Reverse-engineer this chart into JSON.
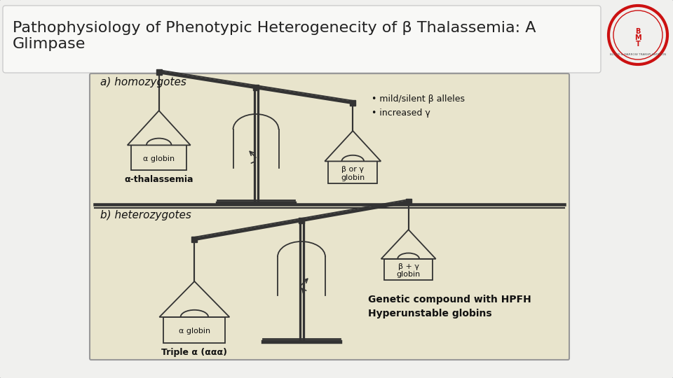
{
  "title_line1": "Pathophysiology of Phenotypic Heterogenecity of β Thalassemia: A",
  "title_line2": "Glimpase",
  "title_fontsize": 16,
  "title_color": "#222222",
  "slide_bg": "#f0f0ee",
  "diagram_bg": "#e8e4cc",
  "line_color": "#333333",
  "text_color": "#111111",
  "label_a": "a) homozygotes",
  "label_b": "b) heterozygotes",
  "alpha_globin_label": "α globin",
  "alpha_thal_label": "α-thalassemia",
  "beta_or_gamma_label": "β or γ\nglobin",
  "bullet1": "• mild/silent β alleles",
  "bullet2": "• increased γ",
  "triple_alpha_label": "Triple α (ααα)",
  "alpha_globin_b_label": "α globin",
  "beta_gamma_label": "β + γ\nglobin",
  "genetic_compound": "Genetic compound with HPFH",
  "hyperunstable": "Hyperunstable globins",
  "logo_text_top": "BLOOD & MARROW TRANSPLANTATION",
  "logo_main": "B\nM\nT"
}
